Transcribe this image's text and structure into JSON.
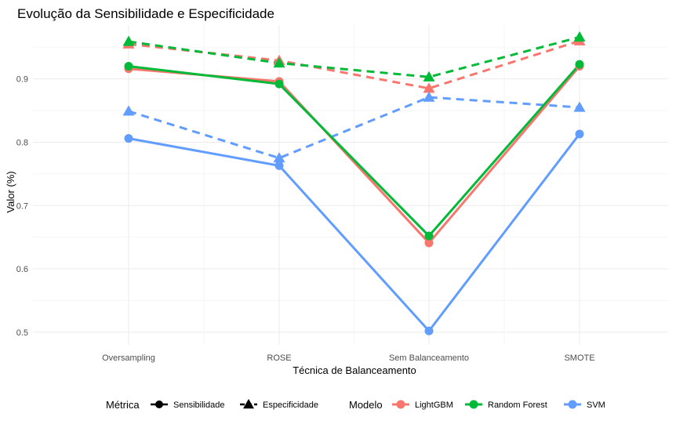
{
  "chart_data": {
    "type": "line",
    "title": "Evolução da Sensibilidade e Especificidade",
    "xlabel": "Técnica de Balanceamento",
    "ylabel": "Valor (%)",
    "categories": [
      "Oversampling",
      "ROSE",
      "Sem Balanceamento",
      "SMOTE"
    ],
    "ylim": [
      0.48,
      0.985
    ],
    "yticks": [
      0.5,
      0.6,
      0.7,
      0.8,
      0.9
    ],
    "ytick_labels": [
      "0.5",
      "0.6",
      "0.7",
      "0.8",
      "0.9"
    ],
    "grid": true,
    "legend_position": "bottom",
    "legend": {
      "metric_title": "Métrica",
      "metric_items": [
        {
          "key": "sens",
          "label": "Sensibilidade",
          "shape": "circle",
          "linetype": "solid"
        },
        {
          "key": "spec",
          "label": "Especificidade",
          "shape": "triangle",
          "linetype": "dashed"
        }
      ],
      "model_title": "Modelo",
      "model_items": [
        {
          "label": "LightGBM",
          "color": "#F8766D"
        },
        {
          "label": "Random Forest",
          "color": "#00BA38"
        },
        {
          "label": "SVM",
          "color": "#619CFF"
        }
      ]
    },
    "series": [
      {
        "model": "LightGBM",
        "metric": "Sensibilidade",
        "color": "#F8766D",
        "values": [
          0.916,
          0.896,
          0.641,
          0.92
        ]
      },
      {
        "model": "Random Forest",
        "metric": "Sensibilidade",
        "color": "#00BA38",
        "values": [
          0.92,
          0.892,
          0.652,
          0.923
        ]
      },
      {
        "model": "SVM",
        "metric": "Sensibilidade",
        "color": "#619CFF",
        "values": [
          0.806,
          0.763,
          0.502,
          0.813
        ]
      },
      {
        "model": "LightGBM",
        "metric": "Especificidade",
        "color": "#F8766D",
        "values": [
          0.955,
          0.929,
          0.885,
          0.96
        ]
      },
      {
        "model": "Random Forest",
        "metric": "Especificidade",
        "color": "#00BA38",
        "values": [
          0.959,
          0.925,
          0.903,
          0.966
        ]
      },
      {
        "model": "SVM",
        "metric": "Especificidade",
        "color": "#619CFF",
        "values": [
          0.849,
          0.775,
          0.871,
          0.855
        ]
      }
    ]
  }
}
